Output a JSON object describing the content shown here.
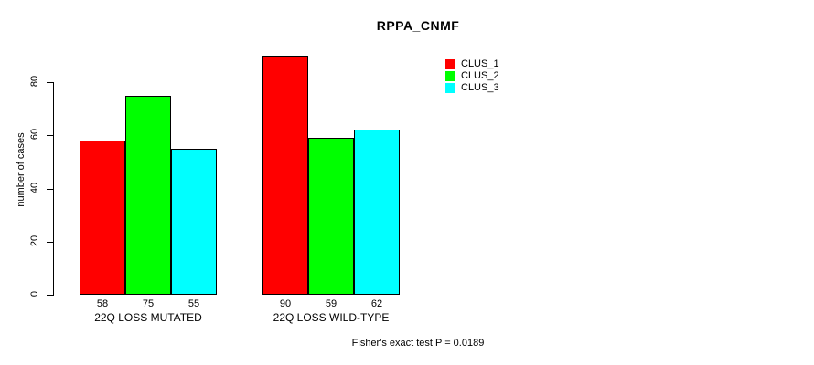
{
  "title": "RPPA_CNMF",
  "y_axis": {
    "label": "number of cases",
    "ticks": [
      0,
      20,
      40,
      60,
      80
    ]
  },
  "footer": "Fisher's exact test P = 0.0189",
  "chart_data": {
    "type": "bar",
    "title": "RPPA_CNMF",
    "xlabel": "",
    "ylabel": "number of cases",
    "categories": [
      "22Q LOSS MUTATED",
      "22Q LOSS WILD-TYPE"
    ],
    "series": [
      {
        "name": "CLUS_1",
        "color": "#ff0000",
        "values": [
          58,
          90
        ]
      },
      {
        "name": "CLUS_2",
        "color": "#00ff00",
        "values": [
          75,
          59
        ]
      },
      {
        "name": "CLUS_3",
        "color": "#00ffff",
        "values": [
          55,
          62
        ]
      }
    ],
    "ylim": [
      0,
      90
    ],
    "yticks": [
      0,
      20,
      40,
      60,
      80
    ],
    "grid": false,
    "legend_position": "top-right",
    "value_labels_position": "below bars",
    "annotation": "Fisher's exact test P = 0.0189"
  }
}
